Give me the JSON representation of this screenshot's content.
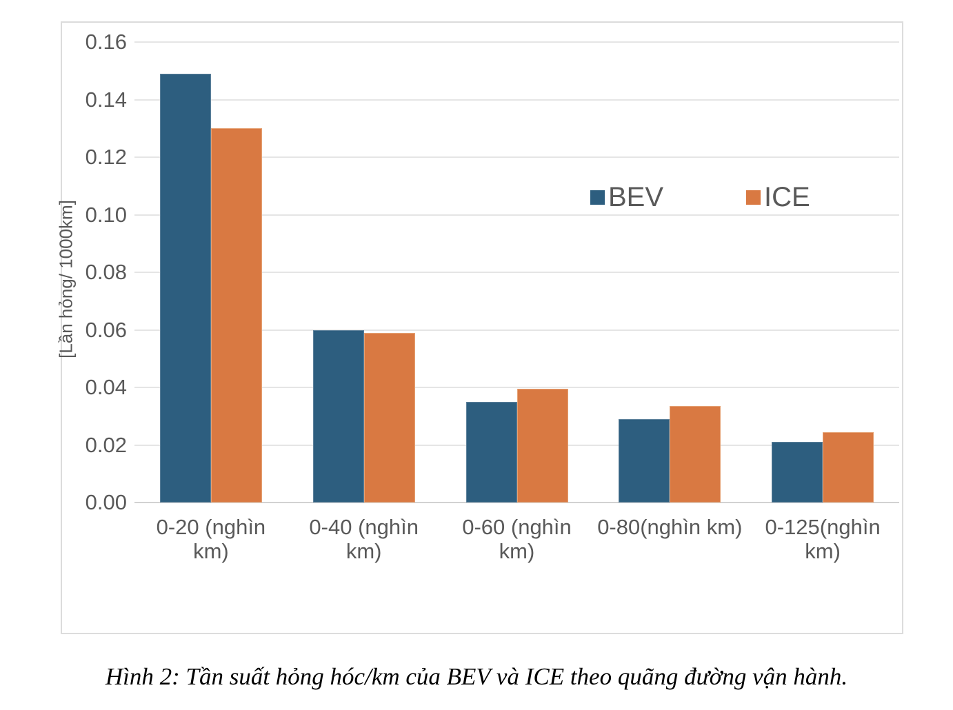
{
  "chart_data": {
    "type": "bar",
    "title": "",
    "categories": [
      "0-20 (nghìn\nkm)",
      "0-40 (nghìn\nkm)",
      "0-60 (nghìn\nkm)",
      "0-80(nghìn km)",
      "0-125(nghìn\nkm)"
    ],
    "series": [
      {
        "name": "BEV",
        "color": "#2d5e7f",
        "edge": "#5d819b",
        "values": [
          0.149,
          0.06,
          0.035,
          0.029,
          0.021
        ]
      },
      {
        "name": "ICE",
        "color": "#d97942",
        "edge": "#e5a173",
        "values": [
          0.13,
          0.059,
          0.0395,
          0.0335,
          0.0245
        ]
      }
    ],
    "ylabel": "[Lần hỏng/ 1000km]",
    "ylim": [
      0,
      0.16
    ],
    "ytick_step": 0.02,
    "yticks": [
      "0.00",
      "0.02",
      "0.04",
      "0.06",
      "0.08",
      "0.10",
      "0.12",
      "0.14",
      "0.16"
    ],
    "grid": true,
    "legend_position": "inside upper right"
  },
  "caption": "Hình 2: Tần suất hỏng hóc/km của BEV và ICE theo quãng đường vận hành.",
  "colors": {
    "bev": "#2d5e7f",
    "ice": "#d97942",
    "tick_text": "#595959",
    "gridline": "#e5e5e5",
    "axis_line": "#d2d2d2",
    "frame_border": "#dcdcdc",
    "background": "#ffffff"
  }
}
